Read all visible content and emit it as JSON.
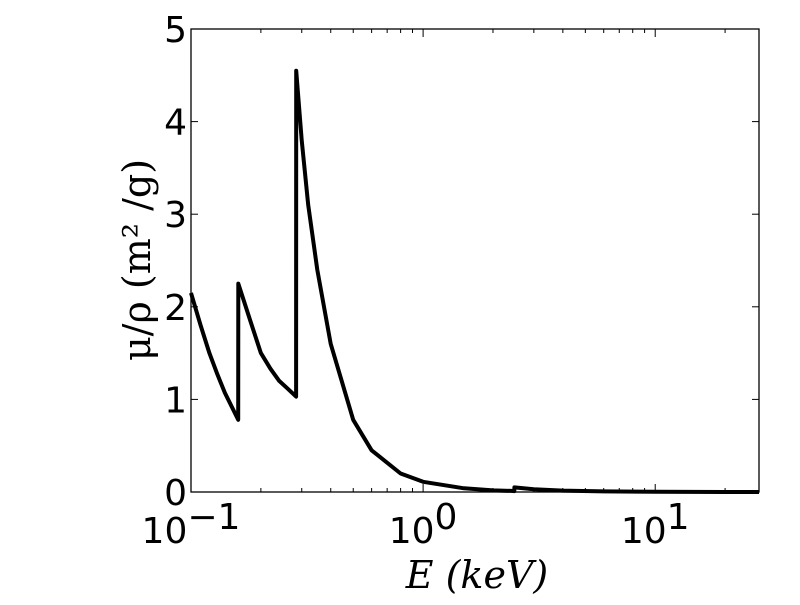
{
  "chart_data": {
    "type": "line",
    "xscale": "log",
    "xlim": [
      0.1,
      28
    ],
    "ylim": [
      0,
      5
    ],
    "xlabel": "E (keV)",
    "ylabel": "μ/ρ (m² /g)",
    "xticks": [
      {
        "value": 0.1,
        "base": "10",
        "exp": "−1"
      },
      {
        "value": 1,
        "base": "10",
        "exp": "0"
      },
      {
        "value": 10,
        "base": "10",
        "exp": "1"
      }
    ],
    "yticks": [
      "0",
      "1",
      "2",
      "3",
      "4",
      "5"
    ],
    "grid": false,
    "legend": "none",
    "line_color": "#000000",
    "series": [
      {
        "x": [
          0.1,
          0.11,
          0.12,
          0.13,
          0.14,
          0.1597,
          0.1598,
          0.18,
          0.2,
          0.22,
          0.24,
          0.26,
          0.2838,
          0.284,
          0.3,
          0.32,
          0.35,
          0.4,
          0.5,
          0.6,
          0.8,
          1.0,
          1.5,
          2.0,
          2.4,
          2.472,
          2.473,
          3.0,
          4.0,
          6.0,
          10.0,
          20.0,
          28.0
        ],
        "y": [
          2.15,
          1.8,
          1.5,
          1.27,
          1.07,
          0.78,
          2.25,
          1.85,
          1.5,
          1.33,
          1.2,
          1.12,
          1.03,
          4.55,
          3.8,
          3.1,
          2.4,
          1.6,
          0.78,
          0.45,
          0.2,
          0.11,
          0.04,
          0.017,
          0.012,
          0.01,
          0.05,
          0.03,
          0.015,
          0.006,
          0.002,
          0.0005,
          0.0002
        ]
      }
    ]
  }
}
